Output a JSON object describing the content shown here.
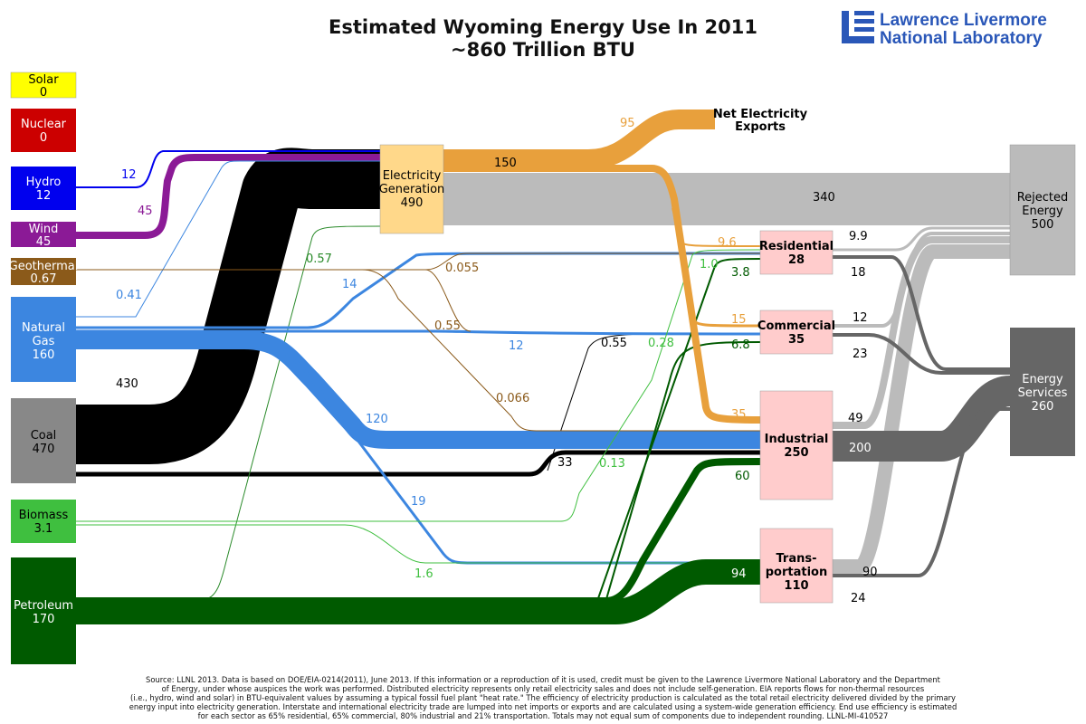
{
  "header": {
    "title": "Estimated Wyoming Energy Use In 2011",
    "subtitle": "~860 Trillion BTU"
  },
  "logo": {
    "line1": "Lawrence Livermore",
    "line2": "National Laboratory"
  },
  "colors": {
    "solar": "#ffff00",
    "nuclear": "#cc0000",
    "hydro": "#0000ee",
    "wind": "#8b1a96",
    "geothermal": "#8b5a1a",
    "gas": "#3c86e0",
    "coal": "#000000",
    "coal_box": "#888888",
    "biomass": "#3fbf3f",
    "petroleum": "#005a00",
    "electricity": "#e8a03c",
    "elec_box": "#ffd88a",
    "sector_box": "#ffcccc",
    "rejected": "#bbbbbb",
    "services": "#666666"
  },
  "sources": [
    {
      "id": "solar",
      "label": "Solar",
      "value": "0"
    },
    {
      "id": "nuclear",
      "label": "Nuclear",
      "value": "0"
    },
    {
      "id": "hydro",
      "label": "Hydro",
      "value": "12"
    },
    {
      "id": "wind",
      "label": "Wind",
      "value": "45"
    },
    {
      "id": "geothermal",
      "label": "Geothermal",
      "value": "0.67"
    },
    {
      "id": "gas",
      "label": "Natural Gas",
      "value": "160"
    },
    {
      "id": "coal",
      "label": "Coal",
      "value": "470"
    },
    {
      "id": "biomass",
      "label": "Biomass",
      "value": "3.1"
    },
    {
      "id": "petroleum",
      "label": "Petroleum",
      "value": "170"
    }
  ],
  "electricity": {
    "label": "Electricity Generation",
    "value": "490"
  },
  "exports": {
    "label": "Net Electricity Exports"
  },
  "sectors": [
    {
      "id": "residential",
      "label": "Residential",
      "value": "28"
    },
    {
      "id": "commercial",
      "label": "Commercial",
      "value": "35"
    },
    {
      "id": "industrial",
      "label": "Industrial",
      "value": "250"
    },
    {
      "id": "transportation",
      "label": "Trans- portation",
      "value": "110"
    }
  ],
  "sinks": [
    {
      "id": "rejected",
      "label": "Rejected Energy",
      "value": "500"
    },
    {
      "id": "services",
      "label": "Energy Services",
      "value": "260"
    }
  ],
  "flows": [
    {
      "from": "hydro",
      "to": "electricity",
      "value": "12"
    },
    {
      "from": "wind",
      "to": "electricity",
      "value": "45"
    },
    {
      "from": "coal",
      "to": "electricity",
      "value": "430"
    },
    {
      "from": "gas",
      "to": "electricity",
      "value": "0.41"
    },
    {
      "from": "petroleum",
      "to": "electricity",
      "value": "0.57"
    },
    {
      "from": "electricity",
      "to": "exports",
      "value": "95"
    },
    {
      "from": "electricity",
      "to": "sectors",
      "value": "150"
    },
    {
      "from": "electricity",
      "to": "rejected",
      "value": "340"
    },
    {
      "from": "electricity",
      "to": "residential",
      "value": "9.6"
    },
    {
      "from": "electricity",
      "to": "commercial",
      "value": "15"
    },
    {
      "from": "electricity",
      "to": "industrial",
      "value": "35"
    },
    {
      "from": "geothermal",
      "to": "residential",
      "value": "0.055"
    },
    {
      "from": "geothermal",
      "to": "commercial",
      "value": "0.55"
    },
    {
      "from": "geothermal",
      "to": "industrial",
      "value": "0.066"
    },
    {
      "from": "gas",
      "to": "residential",
      "value": "14"
    },
    {
      "from": "gas",
      "to": "commercial",
      "value": "12"
    },
    {
      "from": "gas",
      "to": "industrial",
      "value": "120"
    },
    {
      "from": "gas",
      "to": "transportation",
      "value": "19"
    },
    {
      "from": "coal",
      "to": "industrial",
      "value": "33"
    },
    {
      "from": "coal",
      "to": "commercial",
      "value": "0.55"
    },
    {
      "from": "biomass",
      "to": "residential",
      "value": "0.28"
    },
    {
      "from": "biomass",
      "to": "industrial",
      "value": "0.13"
    },
    {
      "from": "biomass",
      "to": "transportation",
      "value": "1.6"
    },
    {
      "from": "petroleum",
      "to": "residential",
      "value": "3.8"
    },
    {
      "from": "petroleum",
      "to": "commercial",
      "value": "6.8"
    },
    {
      "from": "petroleum",
      "to": "industrial",
      "value": "60"
    },
    {
      "from": "petroleum",
      "to": "transportation",
      "value": "94"
    },
    {
      "from": "biomass",
      "to": "residential",
      "value": "1.0"
    },
    {
      "from": "residential",
      "to": "rejected",
      "value": "9.9"
    },
    {
      "from": "residential",
      "to": "services",
      "value": "18"
    },
    {
      "from": "commercial",
      "to": "rejected",
      "value": "12"
    },
    {
      "from": "commercial",
      "to": "services",
      "value": "23"
    },
    {
      "from": "industrial",
      "to": "rejected",
      "value": "49"
    },
    {
      "from": "industrial",
      "to": "services",
      "value": "200"
    },
    {
      "from": "transportation",
      "to": "rejected",
      "value": "90"
    },
    {
      "from": "transportation",
      "to": "services",
      "value": "24"
    }
  ],
  "footnote": [
    "Source: LLNL 2013. Data is based on DOE/EIA-0214(2011), June 2013. If this information or a reproduction of it is used, credit must be given to the Lawrence Livermore National Laboratory and the Department",
    "of Energy, under whose auspices the work was performed. Distributed electricity represents only retail electricity sales and does not include self-generation. EIA reports flows for non-thermal resources",
    "(i.e., hydro, wind and solar) in BTU-equivalent values by assuming a typical fossil fuel plant \"heat rate.\" The efficiency of electricity production is calculated as the total retail electricity delivered divided by the primary",
    "energy input into electricity generation. Interstate and international electricity trade are lumped into net imports or exports and are calculated using a system-wide generation efficiency. End use efficiency is estimated",
    "for each sector as 65% residential, 65% commercial, 80% industrial and 21% transportation. Totals may not equal sum of components due to independent rounding. LLNL-MI-410527"
  ]
}
